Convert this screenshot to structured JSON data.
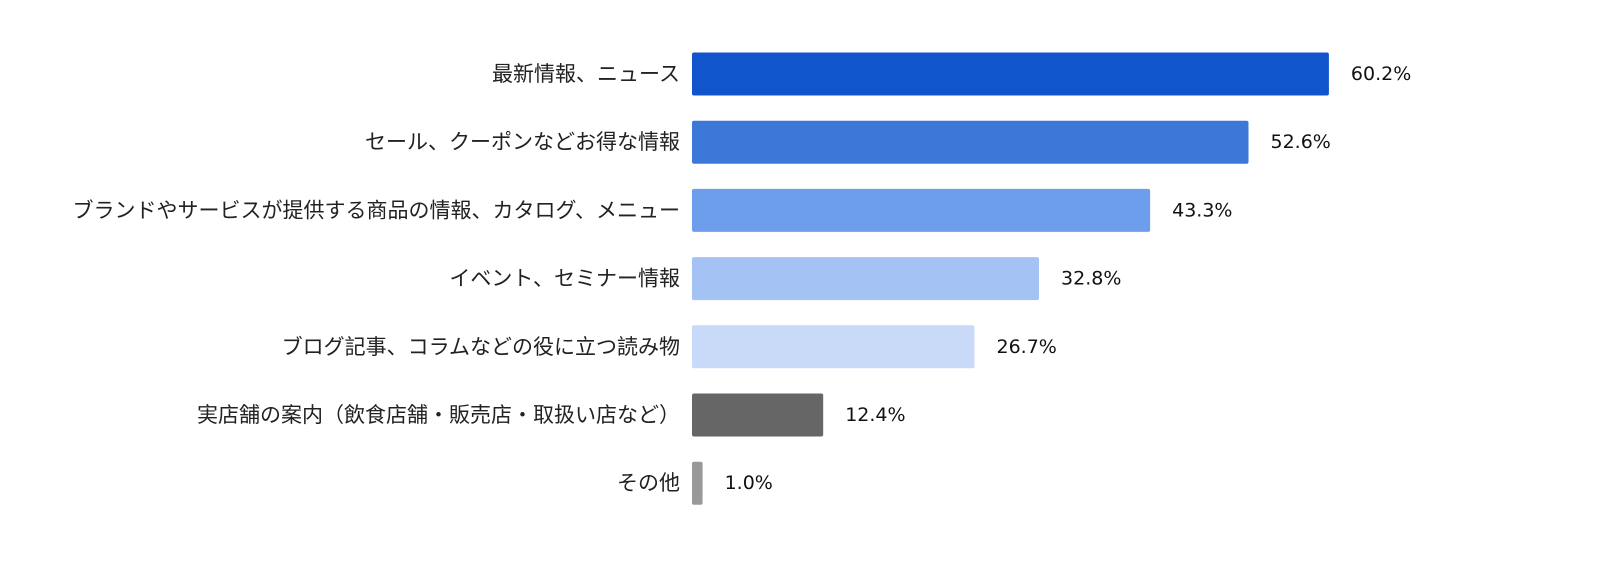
{
  "chart_data": {
    "type": "bar",
    "orientation": "horizontal",
    "categories": [
      "最新情報、ニュース",
      "セール、クーポンなどお得な情報",
      "ブランドやサービスが提供する商品の情報、カタログ、メニュー",
      "イベント、セミナー情報",
      "ブログ記事、コラムなどの役に立つ読み物",
      "実店舗の案内（飲食店舗・販売店・取扱い店など）",
      "その他"
    ],
    "values": [
      60.2,
      52.6,
      43.3,
      32.8,
      26.7,
      12.4,
      1.0
    ],
    "value_labels": [
      "60.2%",
      "52.6%",
      "43.3%",
      "32.8%",
      "26.7%",
      "12.4%",
      "1.0%"
    ],
    "bar_colors": [
      "#1155cc",
      "#3c78d8",
      "#6d9eeb",
      "#a4c2f4",
      "#c9daf8",
      "#666666",
      "#999999"
    ],
    "title": "",
    "xlabel": "",
    "ylabel": "",
    "xlim": [
      0,
      100
    ],
    "grid": false,
    "legend": "none"
  }
}
